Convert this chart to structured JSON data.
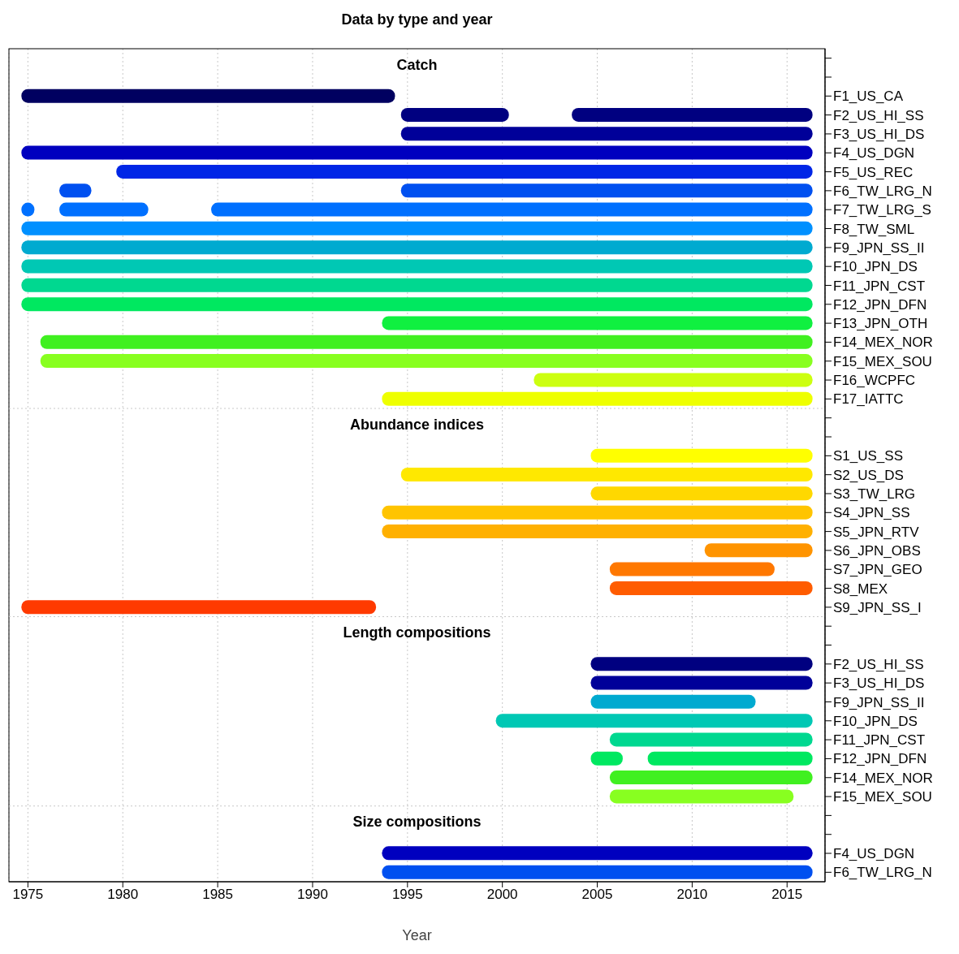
{
  "chart_data": {
    "type": "bar",
    "orientation": "horizontal",
    "title": "Data by type and year",
    "xlabel": "Year",
    "categories": [
      null,
      null,
      "F1_US_CA",
      "F2_US_HI_SS",
      "F3_US_HI_DS",
      "F4_US_DGN",
      "F5_US_REC",
      "F6_TW_LRG_N",
      "F7_TW_LRG_S",
      "F8_TW_SML",
      "F9_JPN_SS_II",
      "F10_JPN_DS",
      "F11_JPN_CST",
      "F12_JPN_DFN",
      "F13_JPN_OTH",
      "F14_MEX_NOR",
      "F15_MEX_SOU",
      "F16_WCPFC",
      "F17_IATTC",
      null,
      null,
      "S1_US_SS",
      "S2_US_DS",
      "S3_TW_LRG",
      "S4_JPN_SS",
      "S5_JPN_RTV",
      "S6_JPN_OBS",
      "S7_JPN_GEO",
      "S8_MEX",
      "S9_JPN_SS_I",
      null,
      null,
      "F2_US_HI_SS",
      "F3_US_HI_DS",
      "F9_JPN_SS_II",
      "F10_JPN_DS",
      "F11_JPN_CST",
      "F12_JPN_DFN",
      "F14_MEX_NOR",
      "F15_MEX_SOU",
      null,
      null,
      "F4_US_DGN",
      "F6_TW_LRG_N"
    ],
    "series": [
      {
        "base": [
          null,
          null,
          1975,
          1995,
          1995,
          1975,
          1980,
          1977,
          1977,
          1975,
          1975,
          1975,
          1975,
          1975,
          1994,
          1976,
          1976,
          2002,
          1994,
          null,
          null,
          2005,
          1995,
          2005,
          1994,
          1994,
          2011,
          2006,
          2006,
          1975,
          null,
          null,
          2005,
          2005,
          2005,
          2000,
          2006,
          2005,
          2006,
          2006,
          null,
          null,
          1994,
          1994
        ],
        "values": [
          null,
          null,
          19,
          5,
          21,
          41,
          36,
          1,
          4,
          41,
          41,
          41,
          41,
          41,
          22,
          40,
          40,
          14,
          22,
          null,
          null,
          11,
          21,
          11,
          22,
          22,
          5,
          8,
          10,
          18,
          null,
          null,
          11,
          11,
          8,
          16,
          10,
          1,
          10,
          9,
          null,
          null,
          22,
          22
        ],
        "colors": [
          null,
          null,
          "#000060",
          "#000080",
          "#000099",
          "#0000bf",
          "#0026e6",
          "#0050f0",
          "#0070ff",
          "#0090ff",
          "#00aad0",
          "#00c8b4",
          "#00d890",
          "#00e860",
          "#10f040",
          "#40f020",
          "#88ff20",
          "#ccff10",
          "#eeff00",
          null,
          null,
          "#ffff00",
          "#ffe800",
          "#ffd800",
          "#ffc400",
          "#ffb000",
          "#ff9400",
          "#ff7800",
          "#ff5c00",
          "#ff3a00",
          null,
          null,
          "#000080",
          "#000099",
          "#00aad0",
          "#00c8b4",
          "#00d890",
          "#00e860",
          "#40f020",
          "#88ff20",
          null,
          null,
          "#0000bf",
          "#0050f0"
        ]
      },
      {
        "base": [
          null,
          null,
          null,
          2004,
          null,
          null,
          null,
          1995,
          1985,
          null,
          null,
          null,
          null,
          null,
          null,
          null,
          null,
          null,
          null,
          null,
          null,
          null,
          null,
          null,
          null,
          null,
          null,
          null,
          null,
          null,
          null,
          null,
          null,
          null,
          null,
          null,
          null,
          2008,
          null,
          null,
          null,
          null,
          null,
          null
        ],
        "values": [
          null,
          null,
          null,
          12,
          null,
          null,
          null,
          21,
          31,
          null,
          null,
          null,
          null,
          null,
          null,
          null,
          null,
          null,
          null,
          null,
          null,
          null,
          null,
          null,
          null,
          null,
          null,
          null,
          null,
          null,
          null,
          null,
          null,
          null,
          null,
          null,
          null,
          8,
          null,
          null,
          null,
          null,
          null,
          null
        ],
        "colors": [
          null,
          null,
          null,
          "#000080",
          null,
          null,
          null,
          "#0050f0",
          "#0070ff",
          null,
          null,
          null,
          null,
          null,
          null,
          null,
          null,
          null,
          null,
          null,
          null,
          null,
          null,
          null,
          null,
          null,
          null,
          null,
          null,
          null,
          null,
          null,
          null,
          null,
          null,
          null,
          null,
          "#00e860",
          null,
          null,
          null,
          null,
          null,
          null
        ]
      },
      {
        "base": [
          null,
          null,
          null,
          null,
          null,
          null,
          null,
          null,
          1975,
          null,
          null,
          null,
          null,
          null,
          null,
          null,
          null,
          null,
          null,
          null,
          null,
          null,
          null,
          null,
          null,
          null,
          null,
          null,
          null,
          null,
          null,
          null,
          null,
          null,
          null,
          null,
          null,
          null,
          null,
          null,
          null,
          null,
          null,
          null
        ],
        "values": [
          null,
          null,
          null,
          null,
          null,
          null,
          null,
          null,
          0,
          null,
          null,
          null,
          null,
          null,
          null,
          null,
          null,
          null,
          null,
          null,
          null,
          null,
          null,
          null,
          null,
          null,
          null,
          null,
          null,
          null,
          null,
          null,
          null,
          null,
          null,
          null,
          null,
          null,
          null,
          null,
          null,
          null,
          null,
          null
        ],
        "colors": [
          null,
          null,
          null,
          null,
          null,
          null,
          null,
          null,
          "#0070ff",
          null,
          null,
          null,
          null,
          null,
          null,
          null,
          null,
          null,
          null,
          null,
          null,
          null,
          null,
          null,
          null,
          null,
          null,
          null,
          null,
          null,
          null,
          null,
          null,
          null,
          null,
          null,
          null,
          null,
          null,
          null,
          null,
          null,
          null,
          null
        ]
      }
    ],
    "xlim": [
      1974,
      2017
    ],
    "xticks": [
      1975,
      1980,
      1985,
      1990,
      1995,
      2000,
      2005,
      2010,
      2015
    ],
    "grid": "x",
    "annotations": [
      "Catch",
      "Abundance indices",
      "Length compositions",
      "Size compositions"
    ]
  }
}
